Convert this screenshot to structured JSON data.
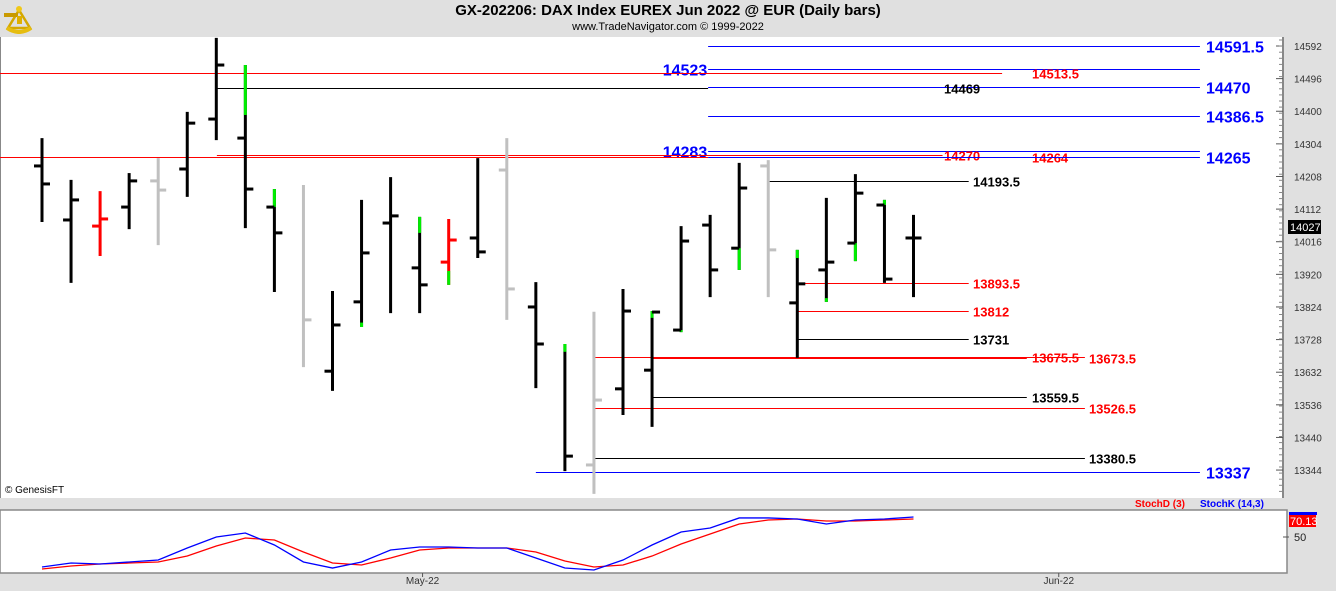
{
  "header": {
    "title": "GX-202206:  DAX Index EUREX Jun 2022 @ EUR  (Daily bars)",
    "subtitle": "www.TradeNavigator.com © 1999-2022",
    "logo_icon": "sextant-icon"
  },
  "copyright": "© GenesisFT",
  "colors": {
    "up": "#000000",
    "down": "#000000",
    "gray": "#c0c0c0",
    "red": "#ff0000",
    "green": "#00ee00",
    "blue": "#0000ff",
    "stochD": "#ff0000",
    "stochK": "#0000ff"
  },
  "chart_data": [
    {
      "type": "ohlc",
      "title": "GX-202206:  DAX Index EUREX Jun 2022 @ EUR  (Daily bars)",
      "ylim": [
        13250,
        14620
      ],
      "y_ticks": [
        "14592",
        "14496",
        "14400",
        "14304",
        "14208",
        "14112",
        "14016",
        "13920",
        "13824",
        "13728",
        "13632",
        "13536",
        "13440",
        "13344"
      ],
      "last_price": "14027",
      "x_ticks": [
        {
          "label": "May-22",
          "bar": 13.1
        },
        {
          "label": "Jun-22",
          "bar": 35
        }
      ],
      "bars": [
        {
          "o": 14239,
          "h": 14321,
          "l": 14074,
          "c": 14186,
          "color": "black"
        },
        {
          "o": 14080,
          "h": 14198,
          "l": 13895,
          "c": 14139,
          "color": "black"
        },
        {
          "o": 14062,
          "h": 14165,
          "l": 13974,
          "c": 14083,
          "color": "red"
        },
        {
          "o": 14118,
          "h": 14218,
          "l": 14053,
          "c": 14195,
          "color": "black"
        },
        {
          "o": 14195,
          "h": 14262,
          "l": 14006,
          "c": 14168,
          "color": "gray"
        },
        {
          "o": 14230,
          "h": 14398,
          "l": 14148,
          "c": 14365,
          "color": "black"
        },
        {
          "o": 14377,
          "h": 14616,
          "l": 14315,
          "c": 14536,
          "color": "black"
        },
        {
          "o": 14321,
          "h": 14536,
          "l": 14056,
          "c": 14171,
          "color": "black",
          "green": [
            14389,
            14536
          ]
        },
        {
          "o": 14118,
          "h": 14171,
          "l": 13868,
          "c": 14042,
          "color": "black",
          "green": [
            14118,
            14171
          ]
        },
        {
          "o": null,
          "h": 14183,
          "l": 13647,
          "c": 13786,
          "color": "gray"
        },
        {
          "o": 13635,
          "h": 13871,
          "l": 13577,
          "c": 13771,
          "color": "black"
        },
        {
          "o": 13839,
          "h": 14139,
          "l": 13765,
          "c": 13983,
          "color": "black",
          "green": [
            13765,
            13778
          ]
        },
        {
          "o": 14071,
          "h": 14206,
          "l": 13806,
          "c": 14092,
          "color": "black"
        },
        {
          "o": 13939,
          "h": 14089,
          "l": 13806,
          "c": 13889,
          "color": "black",
          "green": [
            14042,
            14089
          ]
        },
        {
          "o": 13956,
          "h": 14083,
          "l": 13889,
          "c": 14021,
          "color": "red",
          "green": [
            13889,
            13930
          ]
        },
        {
          "o": 14027,
          "h": 14262,
          "l": 13968,
          "c": 13986,
          "color": "black"
        },
        {
          "o": 14227,
          "h": 14321,
          "l": 13786,
          "c": 13877,
          "color": "gray"
        },
        {
          "o": 13824,
          "h": 13897,
          "l": 13585,
          "c": 13715,
          "color": "black"
        },
        {
          "o": null,
          "h": 13715,
          "l": 13341,
          "c": 13385,
          "color": "black",
          "green": [
            13692,
            13715
          ]
        },
        {
          "o": 13359,
          "h": 13810,
          "l": 13274,
          "c": 13550,
          "color": "gray"
        },
        {
          "o": 13583,
          "h": 13877,
          "l": 13506,
          "c": 13812,
          "color": "black"
        },
        {
          "o": 13638,
          "h": 13812,
          "l": 13471,
          "c": 13809,
          "color": "black",
          "green": [
            13792,
            13812
          ]
        },
        {
          "o": 13756,
          "h": 14062,
          "l": 13750,
          "c": 14018,
          "color": "black",
          "green": [
            13750,
            13756
          ]
        },
        {
          "o": 14065,
          "h": 14095,
          "l": 13853,
          "c": 13933,
          "color": "black"
        },
        {
          "o": 13997,
          "h": 14248,
          "l": 13933,
          "c": 14174,
          "color": "black",
          "green": [
            13933,
            13997
          ]
        },
        {
          "o": 14239,
          "h": 14256,
          "l": 13853,
          "c": 13992,
          "color": "gray"
        },
        {
          "o": 13836,
          "h": 13992,
          "l": 13674,
          "c": 13892,
          "color": "black",
          "green": [
            13968,
            13992
          ]
        },
        {
          "o": 13933,
          "h": 14145,
          "l": 13839,
          "c": 13956,
          "color": "black",
          "green": [
            13839,
            13850
          ]
        },
        {
          "o": 14012,
          "h": 14215,
          "l": 13959,
          "c": 14159,
          "color": "black",
          "green": [
            13959,
            14012
          ]
        },
        {
          "o": 14124,
          "h": 14139,
          "l": 13895,
          "c": 13906,
          "color": "black",
          "green": [
            14124,
            14139
          ]
        },
        {
          "o": 14027,
          "h": 14095,
          "l": 13853,
          "c": 14027,
          "color": "black"
        }
      ],
      "levels": [
        {
          "price": 14591.5,
          "label": "14591.5",
          "color": "blue",
          "from": 22.93,
          "to": 39.86,
          "label_at": 40.07
        },
        {
          "price": 14523,
          "label": "14523",
          "color": "blue",
          "from": 22.93,
          "to": 39.86,
          "label_at": 22.9,
          "label_side": "left"
        },
        {
          "price": 14513.5,
          "label": "14513.5",
          "color": "red",
          "from": -1.5,
          "to": 33.05,
          "label_at": 34.08
        },
        {
          "price": 14470,
          "label": "14470",
          "color": "blue",
          "from": 22.93,
          "to": 39.86,
          "label_at": 40.07
        },
        {
          "price": 14469,
          "label": "14469",
          "color": "black",
          "from": 6.02,
          "to": 22.93,
          "label_at": 31.05
        },
        {
          "price": 14386.5,
          "label": "14386.5",
          "color": "blue",
          "from": 22.93,
          "to": 39.86,
          "label_at": 40.07
        },
        {
          "price": 14283,
          "label": "14283",
          "color": "blue",
          "from": 22.93,
          "to": 39.86,
          "label_at": 22.9,
          "label_side": "left"
        },
        {
          "price": 14270,
          "label": "14270",
          "color": "red",
          "from": 6.02,
          "to": 31.0,
          "label_at": 31.05
        },
        {
          "price": 14264,
          "label": "14264",
          "color": "red",
          "from": -1.5,
          "to": 22.93,
          "label_at": 34.08
        },
        {
          "price": 14265,
          "label": "14265",
          "color": "blue",
          "from": 22.93,
          "to": 39.86,
          "label_at": 40.07
        },
        {
          "price": 14193.5,
          "label": "14193.5",
          "color": "black",
          "from": 25,
          "to": 31.9,
          "label_at": 32.05
        },
        {
          "price": 13893.5,
          "label": "13893.5",
          "color": "red",
          "from": 26,
          "to": 31.9,
          "label_at": 32.05
        },
        {
          "price": 13812,
          "label": "13812",
          "color": "red",
          "from": 26,
          "to": 31.9,
          "label_at": 32.05
        },
        {
          "price": 13731,
          "label": "13731",
          "color": "black",
          "from": 26,
          "to": 31.9,
          "label_at": 32.05
        },
        {
          "price": 13675.5,
          "label": "13675.5",
          "color": "red",
          "from": 19,
          "to": 35.9,
          "label_at": 34.08
        },
        {
          "price": 13673.5,
          "label": "13673.5",
          "color": "red",
          "from": 21,
          "to": 33.9,
          "label_at": 36.04
        },
        {
          "price": 13559.5,
          "label": "13559.5",
          "color": "black",
          "from": 21,
          "to": 33.9,
          "label_at": 34.08
        },
        {
          "price": 13526.5,
          "label": "13526.5",
          "color": "red",
          "from": 19,
          "to": 35.9,
          "label_at": 36.04
        },
        {
          "price": 13380.5,
          "label": "13380.5",
          "color": "black",
          "from": 19,
          "to": 35.9,
          "label_at": 36.04
        },
        {
          "price": 13337,
          "label": "13337",
          "color": "blue",
          "from": 17,
          "to": 39.86,
          "label_at": 40.07
        }
      ]
    },
    {
      "type": "line",
      "series": [
        {
          "name": "StochD (3)",
          "color": "#ff0000",
          "values": [
            12.4,
            15.9,
            18.2,
            19.4,
            20.6,
            27.6,
            39.4,
            48.8,
            46.5,
            32.4,
            19.4,
            17.1,
            25.3,
            34.7,
            37.1,
            37.1,
            37.1,
            32.4,
            21.8,
            14.7,
            17.1,
            27.6,
            41.8,
            53.5,
            65.3,
            70,
            71.2,
            68.8,
            68.8,
            70,
            71.2
          ]
        },
        {
          "name": "StochK (14,3)",
          "color": "#0000ff",
          "values": [
            14.7,
            19.4,
            18.2,
            20.6,
            22.9,
            37.1,
            50,
            54.7,
            40.6,
            20.6,
            13.5,
            20.6,
            34.7,
            38.2,
            38.2,
            37.1,
            37.1,
            25.3,
            13.5,
            11.2,
            22.9,
            40.6,
            55.9,
            60.6,
            72.4,
            72.4,
            71.2,
            65.3,
            70,
            71.2,
            73.5
          ]
        }
      ],
      "y_ticks": [
        "50"
      ],
      "last_value": "70.13"
    }
  ]
}
